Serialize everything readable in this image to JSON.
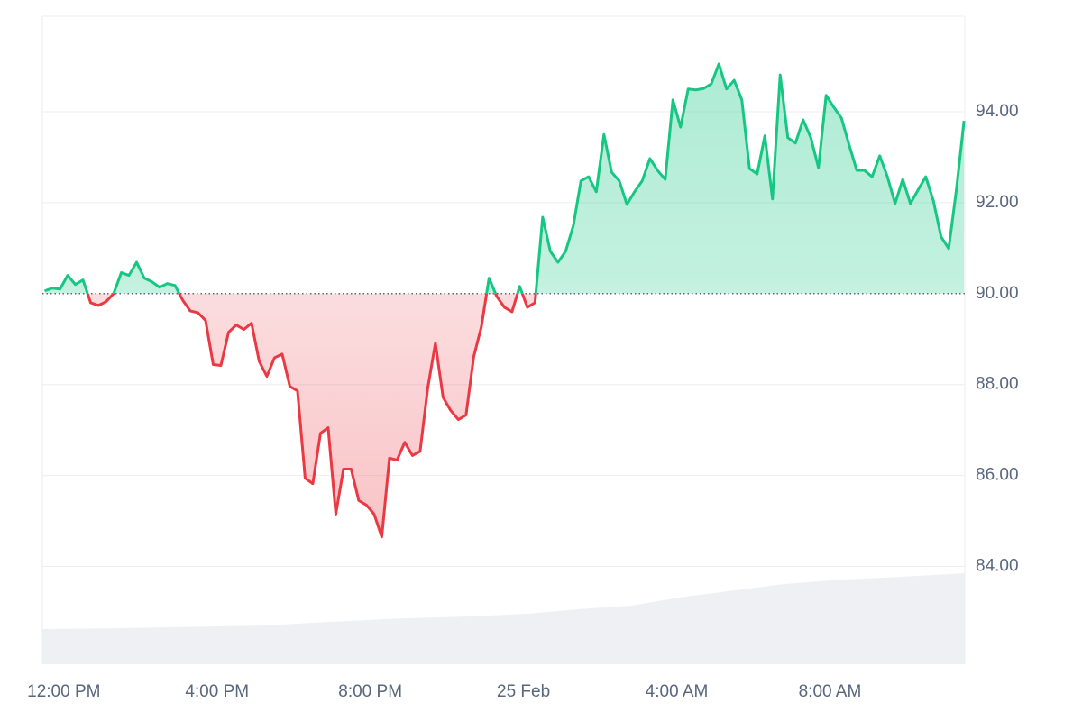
{
  "chart_data": {
    "type": "baseline-line",
    "x": [
      11.5,
      11.7,
      11.9,
      12.1,
      12.3,
      12.5,
      12.7,
      12.9,
      13.1,
      13.3,
      13.5,
      13.7,
      13.9,
      14.1,
      14.3,
      14.5,
      14.7,
      14.9,
      15.1,
      15.3,
      15.5,
      15.7,
      15.9,
      16.1,
      16.3,
      16.5,
      16.7,
      16.9,
      17.1,
      17.3,
      17.5,
      17.7,
      17.9,
      18.1,
      18.3,
      18.5,
      18.7,
      18.9,
      19.1,
      19.3,
      19.5,
      19.7,
      19.9,
      20.1,
      20.3,
      20.5,
      20.7,
      20.9,
      21.1,
      21.3,
      21.5,
      21.7,
      21.9,
      22.1,
      22.3,
      22.5,
      22.7,
      22.9,
      23.1,
      23.3,
      23.5,
      23.7,
      23.9,
      24.1,
      24.3,
      24.5,
      24.7,
      24.9,
      25.1,
      25.3,
      25.5,
      25.7,
      25.9,
      26.1,
      26.3,
      26.5,
      26.7,
      26.9,
      27.1,
      27.3,
      27.5,
      27.7,
      27.9,
      28.1,
      28.3,
      28.5,
      28.7,
      28.9,
      29.1,
      29.3,
      29.5,
      29.7,
      29.9,
      30.1,
      30.3,
      30.5,
      30.7,
      30.9,
      31.1,
      31.3,
      31.5,
      31.7,
      31.9,
      32.1,
      32.3,
      32.5,
      32.7,
      32.9,
      33.1,
      33.3,
      33.5,
      33.7,
      33.9,
      34.1,
      34.3,
      34.5,
      34.7,
      34.9,
      35.1,
      35.3,
      35.5
    ],
    "values": [
      90.06,
      90.12,
      90.1,
      90.4,
      90.2,
      90.3,
      89.8,
      89.74,
      89.82,
      90.0,
      90.46,
      90.4,
      90.69,
      90.34,
      90.26,
      90.14,
      90.22,
      90.18,
      89.86,
      89.62,
      89.58,
      89.41,
      88.44,
      88.42,
      89.15,
      89.31,
      89.21,
      89.35,
      88.51,
      88.18,
      88.59,
      88.67,
      87.96,
      87.86,
      85.94,
      85.82,
      86.93,
      87.05,
      85.15,
      86.14,
      86.14,
      85.45,
      85.35,
      85.15,
      84.65,
      86.38,
      86.34,
      86.73,
      86.44,
      86.53,
      87.92,
      88.91,
      87.72,
      87.43,
      87.23,
      87.33,
      88.61,
      89.27,
      90.34,
      89.94,
      89.7,
      89.6,
      90.16,
      89.7,
      89.8,
      91.68,
      90.93,
      90.69,
      90.93,
      91.49,
      92.48,
      92.57,
      92.24,
      93.5,
      92.67,
      92.48,
      91.96,
      92.24,
      92.48,
      92.97,
      92.71,
      92.51,
      94.26,
      93.66,
      94.5,
      94.48,
      94.51,
      94.61,
      95.05,
      94.5,
      94.69,
      94.26,
      92.75,
      92.63,
      93.47,
      92.08,
      94.81,
      93.43,
      93.31,
      93.82,
      93.43,
      92.77,
      94.36,
      94.1,
      93.86,
      93.27,
      92.71,
      92.71,
      92.57,
      93.03,
      92.57,
      91.98,
      92.51,
      91.98,
      92.28,
      92.57,
      92.04,
      91.25,
      90.99,
      92.28,
      93.8
    ],
    "baseline": 90,
    "up_color": "#16c784",
    "down_color": "#ea3943",
    "xlim": [
      11.44,
      35.52
    ],
    "xticks": [
      {
        "value": 12,
        "label": "12:00 PM"
      },
      {
        "value": 16,
        "label": "4:00 PM"
      },
      {
        "value": 20,
        "label": "8:00 PM"
      },
      {
        "value": 24,
        "label": "25 Feb"
      },
      {
        "value": 28,
        "label": "4:00 AM"
      },
      {
        "value": 32,
        "label": "8:00 AM"
      }
    ],
    "ylim": [
      81.85,
      96.1
    ],
    "yticks": [
      {
        "value": 84,
        "label": "84.00"
      },
      {
        "value": 86,
        "label": "86.00"
      },
      {
        "value": 88,
        "label": "88.00"
      },
      {
        "value": 90,
        "label": "90.00"
      },
      {
        "value": 92,
        "label": "92.00"
      },
      {
        "value": 94,
        "label": "94.00"
      }
    ],
    "grid": true
  }
}
